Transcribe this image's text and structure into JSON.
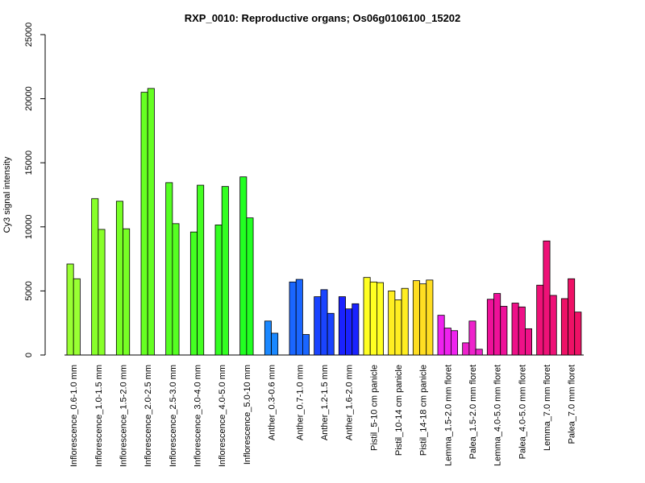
{
  "chart_data": {
    "type": "bar",
    "title": "RXP_0010: Reproductive organs; Os06g0106100_15202",
    "xlabel": "",
    "ylabel": "Cy3 signal intensity",
    "ylim": [
      0,
      25000
    ],
    "yticks": [
      0,
      5000,
      10000,
      15000,
      20000,
      25000
    ],
    "ytick_labels": [
      "0",
      "5000",
      "10000",
      "15000",
      "20000",
      "25000"
    ],
    "grid": false,
    "legend": "none",
    "groups": [
      {
        "label": "Inflorescence_0.6-1.0 mm",
        "color": "#99ff33",
        "values": [
          7100,
          5950
        ]
      },
      {
        "label": "Inflorescence_1.0-1.5 mm",
        "color": "#88ff2a",
        "values": [
          12200,
          9800
        ]
      },
      {
        "label": "Inflorescence_1.5-2.0 mm",
        "color": "#77ff25",
        "values": [
          12000,
          9850
        ]
      },
      {
        "label": "Inflorescence_2.0-2.5 mm",
        "color": "#66ff22",
        "values": [
          20500,
          20800
        ]
      },
      {
        "label": "Inflorescence_2.5-3.0 mm",
        "color": "#55ff22",
        "values": [
          13450,
          10250
        ]
      },
      {
        "label": "Inflorescence_3.0-4.0 mm",
        "color": "#44ff22",
        "values": [
          9600,
          13250
        ]
      },
      {
        "label": "Inflorescence_4.0-5.0 mm",
        "color": "#33ff22",
        "values": [
          10150,
          13150
        ]
      },
      {
        "label": "Inflorescence_5.0-10 mm",
        "color": "#22ff22",
        "values": [
          13900,
          10700
        ]
      },
      {
        "label": "Anther_0.3-0.6 mm",
        "color": "#1a88ff",
        "values": [
          2650,
          1700
        ]
      },
      {
        "label": "Anther_0.7-1.0 mm",
        "color": "#1a66ff",
        "values": [
          5700,
          5900,
          1600
        ]
      },
      {
        "label": "Anther_1.2-1.5 mm",
        "color": "#1a44ff",
        "values": [
          4550,
          5100,
          3250
        ]
      },
      {
        "label": "Anther_1.6-2.0 mm",
        "color": "#1a22ff",
        "values": [
          4550,
          3600,
          4000
        ]
      },
      {
        "label": "Pistil_5-10 cm panicle",
        "color": "#ffff22",
        "values": [
          6050,
          5700,
          5650
        ]
      },
      {
        "label": "Pistil_10-14 cm panicle",
        "color": "#ffee22",
        "values": [
          5000,
          4300,
          5200
        ]
      },
      {
        "label": "Pistil_14-18 cm panicle",
        "color": "#ffdd22",
        "values": [
          5800,
          5550,
          5850
        ]
      },
      {
        "label": "Lemma_1.5-2.0 mm floret",
        "color": "#ee22ee",
        "values": [
          3100,
          2100,
          1900
        ]
      },
      {
        "label": "Palea_1.5-2.0 mm floret",
        "color": "#ee22cc",
        "values": [
          950,
          2650,
          450
        ]
      },
      {
        "label": "Lemma_4.0-5.0 mm floret",
        "color": "#ee1199",
        "values": [
          4350,
          4800,
          3800
        ]
      },
      {
        "label": "Palea_4.0-5.0 mm floret",
        "color": "#ee1188",
        "values": [
          4050,
          3750,
          2050
        ]
      },
      {
        "label": "Lemma_7.0 mm floret",
        "color": "#ee1177",
        "values": [
          5450,
          8900,
          4650
        ]
      },
      {
        "label": "Palea_7.0 mm floret",
        "color": "#ee1166",
        "values": [
          4400,
          5950,
          3350
        ]
      }
    ]
  }
}
